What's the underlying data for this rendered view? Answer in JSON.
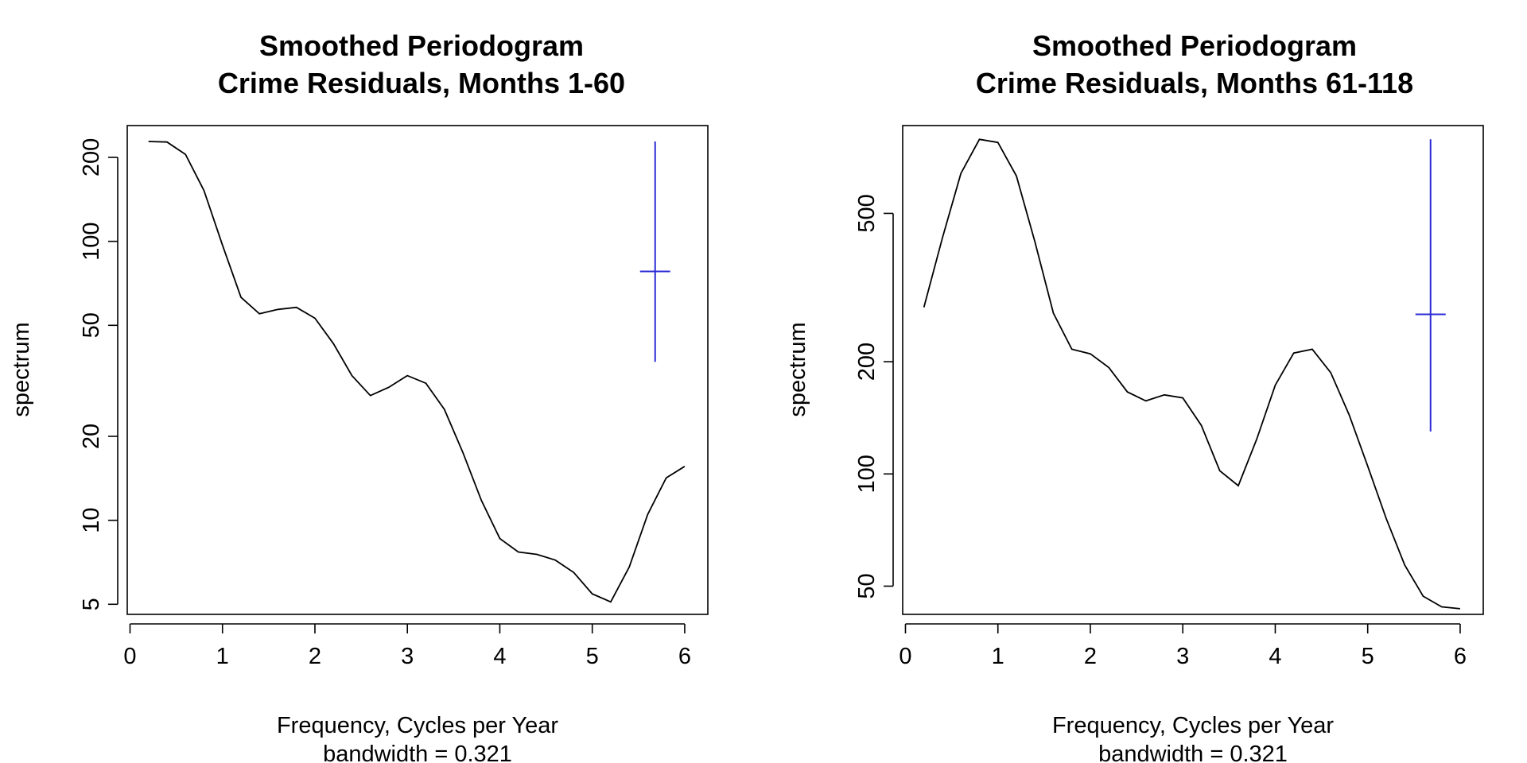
{
  "chart_data": [
    {
      "type": "line",
      "title": [
        "Smoothed Periodogram",
        "Crime Residuals, Months 1-60"
      ],
      "xlabel": "Frequency, Cycles per Year",
      "sublabel": "bandwidth = 0.321",
      "ylabel": "spectrum",
      "log_y": true,
      "xlim": [
        0,
        6
      ],
      "ylim": [
        4.6,
        260
      ],
      "xticks": [
        "0",
        "1",
        "2",
        "3",
        "4",
        "5",
        "6"
      ],
      "yticks": [
        "5",
        "10",
        "20",
        "50",
        "100",
        "200"
      ],
      "series": [
        {
          "x": [
            0.2,
            0.4,
            0.6,
            0.8,
            1.0,
            1.2,
            1.4,
            1.6,
            1.8,
            2.0,
            2.2,
            2.4,
            2.6,
            2.8,
            3.0,
            3.2,
            3.4,
            3.6,
            3.8,
            4.0,
            4.2,
            4.4,
            4.6,
            4.8,
            5.0,
            5.2,
            5.4,
            5.6,
            5.8,
            6.0
          ],
          "y": [
            228,
            227,
            205,
            152,
            97,
            63,
            55,
            57,
            58,
            53,
            43,
            33,
            28,
            30,
            33,
            31,
            25,
            17.5,
            11.8,
            8.6,
            7.7,
            7.55,
            7.2,
            6.5,
            5.45,
            5.1,
            6.8,
            10.5,
            14.2,
            15.6
          ],
          "color": "#000000"
        }
      ],
      "ci_bar": {
        "x": 5.68,
        "y_low": 37,
        "y_high": 228,
        "y_center": 78,
        "color": "#2b2bd6"
      }
    },
    {
      "type": "line",
      "title": [
        "Smoothed Periodogram",
        "Crime Residuals, Months 61-118"
      ],
      "xlabel": "Frequency, Cycles per Year",
      "sublabel": "bandwidth = 0.321",
      "ylabel": "spectrum",
      "log_y": true,
      "xlim": [
        0,
        6
      ],
      "ylim": [
        42,
        860
      ],
      "xticks": [
        "0",
        "1",
        "2",
        "3",
        "4",
        "5",
        "6"
      ],
      "yticks": [
        "50",
        "100",
        "200",
        "500"
      ],
      "series": [
        {
          "x": [
            0.2,
            0.4,
            0.6,
            0.8,
            1.0,
            1.2,
            1.4,
            1.6,
            1.8,
            2.0,
            2.2,
            2.4,
            2.6,
            2.8,
            3.0,
            3.2,
            3.4,
            3.6,
            3.8,
            4.0,
            4.2,
            4.4,
            4.6,
            4.8,
            5.0,
            5.2,
            5.4,
            5.6,
            5.8,
            6.0
          ],
          "y": [
            280,
            430,
            640,
            790,
            775,
            630,
            420,
            270,
            216,
            210,
            193,
            166,
            157,
            163,
            160,
            135,
            102,
            93,
            124,
            173,
            211,
            216,
            187,
            144,
            105,
            76,
            57,
            47,
            44,
            43.5
          ],
          "color": "#000000"
        }
      ],
      "ci_bar": {
        "x": 5.68,
        "y_low": 130,
        "y_high": 790,
        "y_center": 268,
        "color": "#2b2bd6"
      }
    }
  ]
}
